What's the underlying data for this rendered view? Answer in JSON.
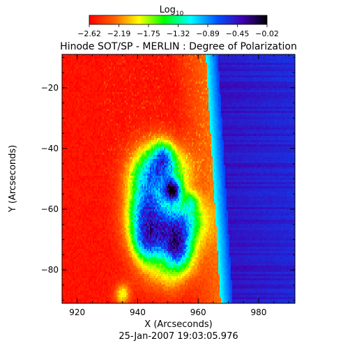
{
  "chart_data": {
    "type": "heatmap",
    "title": "Hinode SOT/SP - MERLIN : Degree of Polarization",
    "xlabel": "X (Arcseconds)",
    "ylabel": "Y (Arcseconds)",
    "timestamp": "25-Jan-2007 19:03:05.976",
    "xlim": [
      915,
      992
    ],
    "ylim": [
      -91,
      -9
    ],
    "x_ticks": [
      {
        "value": 920,
        "label": "920"
      },
      {
        "value": 940,
        "label": "940"
      },
      {
        "value": 960,
        "label": "960"
      },
      {
        "value": 980,
        "label": "980"
      }
    ],
    "y_ticks": [
      {
        "value": -20,
        "label": "−20"
      },
      {
        "value": -40,
        "label": "−40"
      },
      {
        "value": -60,
        "label": "−60"
      },
      {
        "value": -80,
        "label": "−80"
      }
    ],
    "colorbar": {
      "title_base": "Log",
      "title_sub": "10",
      "range": [
        -2.62,
        -0.02
      ],
      "tick_labels": [
        "−2.62",
        "−2.19",
        "−1.75",
        "−1.32",
        "−0.89",
        "−0.45",
        "−0.02"
      ],
      "colors": [
        "#ff0000",
        "#ff8000",
        "#ffff00",
        "#00ff00",
        "#00ffff",
        "#0060ff",
        "#4000c0",
        "#000000"
      ]
    },
    "features": {
      "disk_background_log10": -2.55,
      "limb_x": 966,
      "offlimb_log10": -0.45,
      "limb_peak_log10": -1.05
    }
  }
}
